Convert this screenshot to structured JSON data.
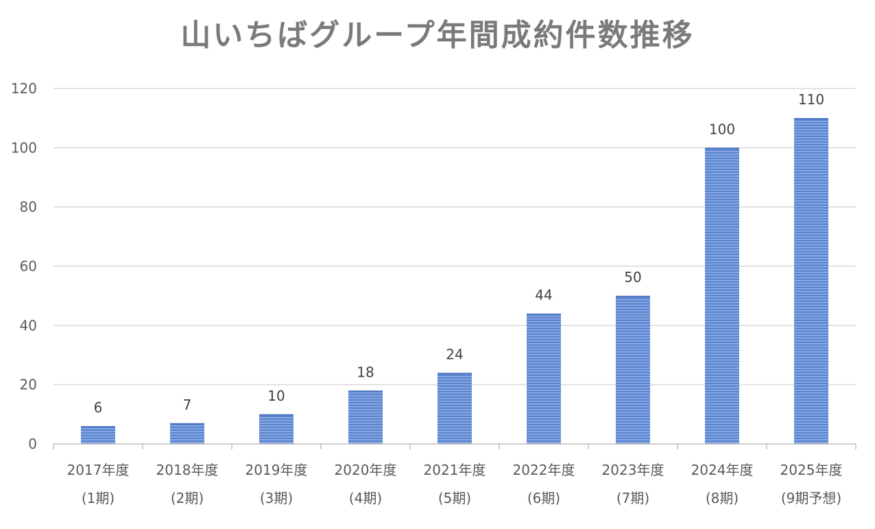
{
  "chart_data": {
    "type": "bar",
    "title": "山いちばグループ年間成約件数推移",
    "xlabel": "",
    "ylabel": "",
    "categories": [
      [
        "2017年度",
        "(1期)"
      ],
      [
        "2018年度",
        "(2期)"
      ],
      [
        "2019年度",
        "(3期)"
      ],
      [
        "2020年度",
        "(4期)"
      ],
      [
        "2021年度",
        "(5期)"
      ],
      [
        "2022年度",
        "(6期)"
      ],
      [
        "2023年度",
        "(7期)"
      ],
      [
        "2024年度",
        "(8期)"
      ],
      [
        "2025年度",
        "(9期予想)"
      ]
    ],
    "values": [
      6,
      7,
      10,
      18,
      24,
      44,
      50,
      100,
      110
    ],
    "ylim": [
      0,
      120
    ],
    "yticks": [
      0,
      20,
      40,
      60,
      80,
      100,
      120
    ],
    "grid": true,
    "legend": "none",
    "colors": {
      "bar_fill": "#5b84cf",
      "bar_stripe": "#8fb0e6",
      "grid": "#d9d9d9",
      "axis": "#bfbfbf"
    }
  }
}
